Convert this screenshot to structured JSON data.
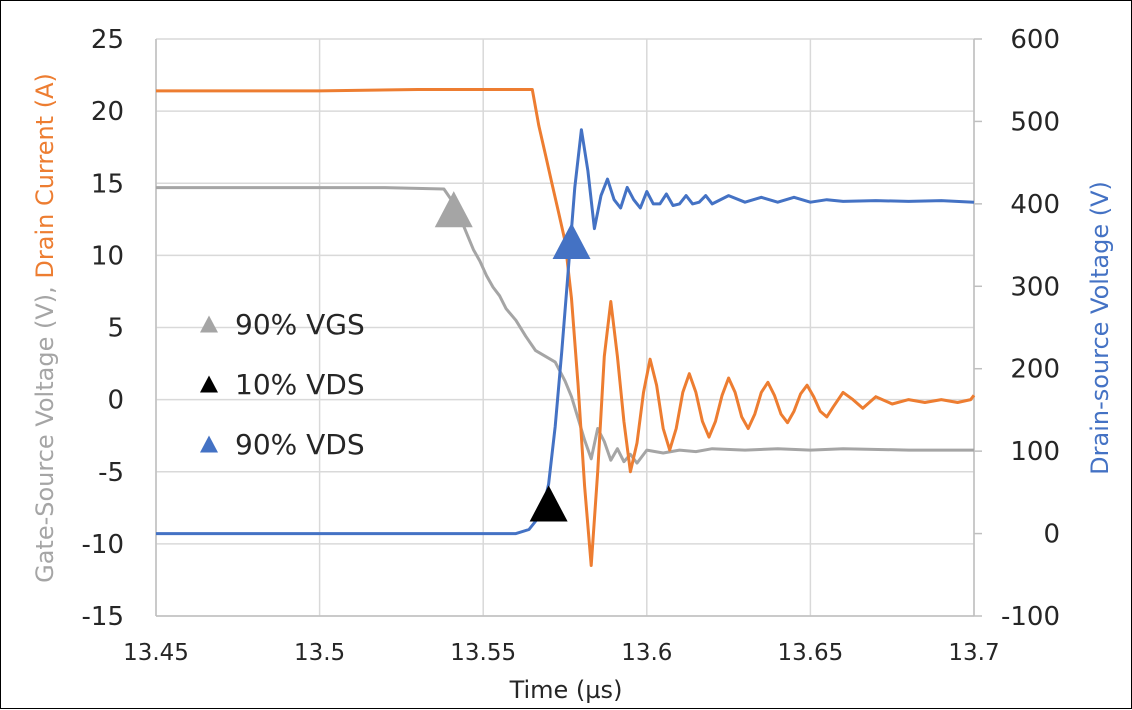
{
  "chart_data": {
    "type": "line",
    "title": "",
    "xlabel": "Time (µs)",
    "ylabel_left_parts": [
      {
        "text": "Gate-Source Voltage (V), ",
        "color": "#A5A5A5"
      },
      {
        "text": "Drain Current (A)",
        "color": "#ED7D31"
      }
    ],
    "ylabel_right": "Drain-source Voltage (V)",
    "xlim": [
      13.45,
      13.7
    ],
    "x_ticks": [
      "13.45",
      "13.5",
      "13.55",
      "13.6",
      "13.65",
      "13.7"
    ],
    "x_tick_values": [
      13.45,
      13.5,
      13.55,
      13.6,
      13.65,
      13.7
    ],
    "ylim_left": [
      -15,
      25
    ],
    "y_left_ticks": [
      -15,
      -10,
      -5,
      0,
      5,
      10,
      15,
      20,
      25
    ],
    "ylim_right": [
      -100,
      600
    ],
    "y_right_ticks": [
      -100,
      0,
      100,
      200,
      300,
      400,
      500,
      600
    ],
    "grid": true,
    "colors": {
      "vgs": "#A5A5A5",
      "id": "#ED7D31",
      "vds": "#4472C4",
      "marker_10": "#000000"
    },
    "series": [
      {
        "axis": "left",
        "color": "#A5A5A5",
        "points": [
          [
            13.45,
            14.7
          ],
          [
            13.47,
            14.7
          ],
          [
            13.5,
            14.7
          ],
          [
            13.52,
            14.7
          ],
          [
            13.538,
            14.6
          ],
          [
            13.541,
            13.6
          ],
          [
            13.543,
            12.6
          ],
          [
            13.545,
            11.5
          ],
          [
            13.547,
            10.4
          ],
          [
            13.549,
            9.6
          ],
          [
            13.551,
            8.6
          ],
          [
            13.553,
            7.8
          ],
          [
            13.555,
            7.2
          ],
          [
            13.557,
            6.3
          ],
          [
            13.56,
            5.5
          ],
          [
            13.563,
            4.4
          ],
          [
            13.566,
            3.4
          ],
          [
            13.569,
            3.0
          ],
          [
            13.572,
            2.6
          ],
          [
            13.575,
            1.3
          ],
          [
            13.577,
            0.2
          ],
          [
            13.579,
            -1.3
          ],
          [
            13.581,
            -2.8
          ],
          [
            13.583,
            -4.1
          ],
          [
            13.585,
            -2.0
          ],
          [
            13.587,
            -2.9
          ],
          [
            13.589,
            -4.2
          ],
          [
            13.591,
            -3.4
          ],
          [
            13.593,
            -4.3
          ],
          [
            13.595,
            -3.8
          ],
          [
            13.597,
            -4.4
          ],
          [
            13.6,
            -3.5
          ],
          [
            13.605,
            -3.7
          ],
          [
            13.61,
            -3.5
          ],
          [
            13.615,
            -3.6
          ],
          [
            13.62,
            -3.4
          ],
          [
            13.63,
            -3.5
          ],
          [
            13.64,
            -3.4
          ],
          [
            13.65,
            -3.5
          ],
          [
            13.66,
            -3.4
          ],
          [
            13.68,
            -3.5
          ],
          [
            13.7,
            -3.5
          ]
        ]
      },
      {
        "axis": "left",
        "color": "#ED7D31",
        "points": [
          [
            13.45,
            21.4
          ],
          [
            13.5,
            21.4
          ],
          [
            13.53,
            21.5
          ],
          [
            13.565,
            21.5
          ],
          [
            13.567,
            19.0
          ],
          [
            13.569,
            17.0
          ],
          [
            13.571,
            15.0
          ],
          [
            13.573,
            13.0
          ],
          [
            13.575,
            11.0
          ],
          [
            13.577,
            7.0
          ],
          [
            13.579,
            1.0
          ],
          [
            13.581,
            -6.0
          ],
          [
            13.583,
            -11.5
          ],
          [
            13.585,
            -5.0
          ],
          [
            13.587,
            3.0
          ],
          [
            13.589,
            6.8
          ],
          [
            13.591,
            3.0
          ],
          [
            13.593,
            -1.5
          ],
          [
            13.595,
            -5.0
          ],
          [
            13.597,
            -3.0
          ],
          [
            13.599,
            0.5
          ],
          [
            13.601,
            2.8
          ],
          [
            13.603,
            1.0
          ],
          [
            13.605,
            -2.0
          ],
          [
            13.607,
            -3.5
          ],
          [
            13.609,
            -2.0
          ],
          [
            13.611,
            0.5
          ],
          [
            13.613,
            1.8
          ],
          [
            13.615,
            0.5
          ],
          [
            13.617,
            -1.5
          ],
          [
            13.619,
            -2.6
          ],
          [
            13.621,
            -1.5
          ],
          [
            13.623,
            0.3
          ],
          [
            13.625,
            1.5
          ],
          [
            13.627,
            0.5
          ],
          [
            13.629,
            -1.2
          ],
          [
            13.631,
            -2.0
          ],
          [
            13.633,
            -1.0
          ],
          [
            13.635,
            0.5
          ],
          [
            13.637,
            1.2
          ],
          [
            13.639,
            0.3
          ],
          [
            13.641,
            -1.0
          ],
          [
            13.643,
            -1.6
          ],
          [
            13.645,
            -0.8
          ],
          [
            13.647,
            0.4
          ],
          [
            13.649,
            1.0
          ],
          [
            13.651,
            0.2
          ],
          [
            13.653,
            -0.8
          ],
          [
            13.655,
            -1.2
          ],
          [
            13.657,
            -0.5
          ],
          [
            13.66,
            0.5
          ],
          [
            13.663,
            0.0
          ],
          [
            13.666,
            -0.6
          ],
          [
            13.67,
            0.2
          ],
          [
            13.675,
            -0.3
          ],
          [
            13.68,
            0.0
          ],
          [
            13.685,
            -0.2
          ],
          [
            13.69,
            0.0
          ],
          [
            13.695,
            -0.2
          ],
          [
            13.699,
            0.0
          ],
          [
            13.7,
            0.3
          ]
        ]
      },
      {
        "axis": "right",
        "color": "#4472C4",
        "points": [
          [
            13.45,
            0
          ],
          [
            13.48,
            0
          ],
          [
            13.5,
            0
          ],
          [
            13.52,
            0
          ],
          [
            13.54,
            0
          ],
          [
            13.55,
            0
          ],
          [
            13.56,
            0
          ],
          [
            13.564,
            5
          ],
          [
            13.568,
            25
          ],
          [
            13.57,
            60
          ],
          [
            13.572,
            130
          ],
          [
            13.574,
            220
          ],
          [
            13.576,
            320
          ],
          [
            13.578,
            420
          ],
          [
            13.58,
            490
          ],
          [
            13.582,
            440
          ],
          [
            13.584,
            370
          ],
          [
            13.586,
            410
          ],
          [
            13.588,
            430
          ],
          [
            13.59,
            405
          ],
          [
            13.592,
            395
          ],
          [
            13.594,
            420
          ],
          [
            13.596,
            405
          ],
          [
            13.598,
            395
          ],
          [
            13.6,
            415
          ],
          [
            13.602,
            400
          ],
          [
            13.604,
            400
          ],
          [
            13.606,
            412
          ],
          [
            13.608,
            398
          ],
          [
            13.61,
            400
          ],
          [
            13.612,
            410
          ],
          [
            13.614,
            400
          ],
          [
            13.616,
            402
          ],
          [
            13.618,
            410
          ],
          [
            13.62,
            400
          ],
          [
            13.625,
            410
          ],
          [
            13.63,
            402
          ],
          [
            13.635,
            408
          ],
          [
            13.64,
            402
          ],
          [
            13.645,
            408
          ],
          [
            13.65,
            402
          ],
          [
            13.655,
            405
          ],
          [
            13.66,
            403
          ],
          [
            13.67,
            404
          ],
          [
            13.68,
            403
          ],
          [
            13.69,
            404
          ],
          [
            13.7,
            402
          ]
        ]
      }
    ],
    "markers": [
      {
        "x": 13.541,
        "y": 13.2,
        "axis": "left",
        "color": "#A5A5A5"
      },
      {
        "x": 13.57,
        "y": -7.2,
        "axis": "left",
        "color": "#000000"
      },
      {
        "x": 13.577,
        "y": 11.0,
        "axis": "left",
        "color": "#4472C4"
      }
    ],
    "legend": [
      {
        "label": "90% VGS",
        "color": "#A5A5A5"
      },
      {
        "label": "10% VDS",
        "color": "#000000"
      },
      {
        "label": "90% VDS",
        "color": "#4472C4"
      }
    ],
    "legend_placement": "left-center inside plot"
  }
}
